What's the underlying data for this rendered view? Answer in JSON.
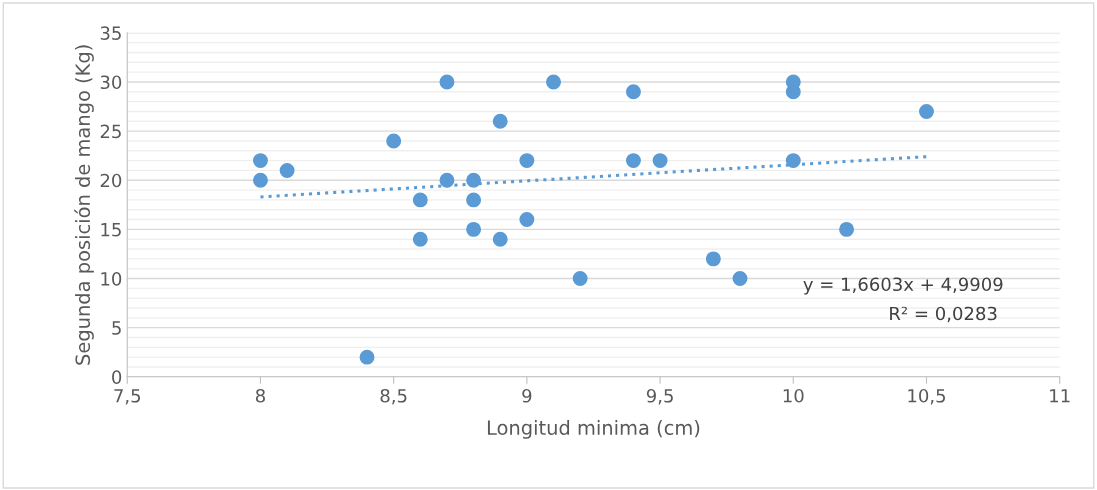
{
  "chart_data": {
    "type": "scatter",
    "xlabel": "Longitud minima (cm)",
    "ylabel": "Segunda posición de mango (Kg)",
    "series": [
      {
        "color": "#5b9bd5",
        "marker": "circle",
        "x": [
          8,
          8,
          8.1,
          8.4,
          8.5,
          8.6,
          8.6,
          8.7,
          8.7,
          8.8,
          8.8,
          8.8,
          8.9,
          8.9,
          9,
          9,
          9.1,
          9.2,
          9.4,
          9.4,
          9.5,
          9.7,
          9.8,
          10,
          10,
          10,
          10.2,
          10.5
        ],
        "values": [
          22,
          20,
          21,
          2,
          24,
          18,
          14,
          30,
          20,
          20,
          18,
          15,
          26,
          14,
          22,
          16,
          30,
          10,
          29,
          22,
          22,
          12,
          10,
          30,
          29,
          22,
          15,
          27
        ]
      },
      {
        "type": "line",
        "color": "#5b9bd5",
        "line_style": "dotted",
        "x": [
          8,
          10.5
        ],
        "values": [
          18.3,
          22.4
        ]
      }
    ],
    "annotations": [
      "y = 1,6603x + 4,9909",
      "R² = 0,0283"
    ],
    "xlim": [
      7.5,
      11
    ],
    "xticks": [
      {
        "value": 7.5,
        "label": "7,5"
      },
      8,
      {
        "value": 8.5,
        "label": "8,5"
      },
      9,
      {
        "value": 9.5,
        "label": "9,5"
      },
      10,
      {
        "value": 10.5,
        "label": "10,5"
      },
      11
    ],
    "ylim": [
      0,
      35
    ],
    "yticks": [
      0,
      {
        "value": 1,
        "label": null
      },
      {
        "value": 2,
        "label": null
      },
      {
        "value": 3,
        "label": null
      },
      {
        "value": 4,
        "label": null
      },
      5,
      {
        "value": 6,
        "label": null
      },
      {
        "value": 7,
        "label": null
      },
      {
        "value": 8,
        "label": null
      },
      {
        "value": 9,
        "label": null
      },
      10,
      {
        "value": 11,
        "label": null
      },
      {
        "value": 12,
        "label": null
      },
      {
        "value": 13,
        "label": null
      },
      {
        "value": 14,
        "label": null
      },
      15,
      {
        "value": 16,
        "label": null
      },
      {
        "value": 17,
        "label": null
      },
      {
        "value": 18,
        "label": null
      },
      {
        "value": 19,
        "label": null
      },
      20,
      {
        "value": 21,
        "label": null
      },
      {
        "value": 22,
        "label": null
      },
      {
        "value": 23,
        "label": null
      },
      {
        "value": 24,
        "label": null
      },
      25,
      {
        "value": 26,
        "label": null
      },
      {
        "value": 27,
        "label": null
      },
      {
        "value": 28,
        "label": null
      },
      {
        "value": 29,
        "label": null
      },
      30,
      {
        "value": 31,
        "label": null
      },
      {
        "value": 32,
        "label": null
      },
      {
        "value": 33,
        "label": null
      },
      {
        "value": 34,
        "label": null
      },
      35
    ],
    "grid": "y",
    "legend": false
  }
}
